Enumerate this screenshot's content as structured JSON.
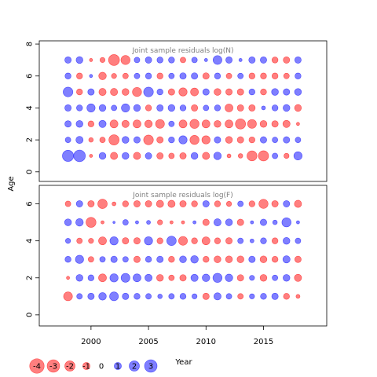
{
  "chart_data": {
    "type": "scatter",
    "style": "bubble",
    "x_years": [
      1998,
      1999,
      2000,
      2001,
      2002,
      2003,
      2004,
      2005,
      2006,
      2007,
      2008,
      2009,
      2010,
      2011,
      2012,
      2013,
      2014,
      2015,
      2016,
      2017,
      2018
    ],
    "xlim": [
      1995.5,
      2020.5
    ],
    "xticks": [
      2000,
      2005,
      2010,
      2015
    ],
    "xlabel": "Year",
    "ylabel": "Age",
    "colors": {
      "positive": "#0000ff",
      "negative": "#ff0000"
    },
    "legend": {
      "position": "bottom-left",
      "entries": [
        {
          "label": "-4",
          "value": -4
        },
        {
          "label": "-3",
          "value": -3
        },
        {
          "label": "-2",
          "value": -2
        },
        {
          "label": "-1",
          "value": -1
        },
        {
          "label": "0",
          "value": 0
        },
        {
          "label": "1",
          "value": 1
        },
        {
          "label": "2",
          "value": 2
        },
        {
          "label": "3",
          "value": 3
        }
      ]
    },
    "panels": [
      {
        "title": "Joint sample residuals log(N)",
        "ylim": [
          -0.6,
          8.2
        ],
        "yticks": [
          0,
          2,
          4,
          6,
          8
        ],
        "ages": [
          1,
          2,
          3,
          4,
          5,
          6,
          7
        ],
        "residuals": [
          [
            2.4,
            2.6,
            -0.2,
            0.9,
            -1.0,
            0.9,
            -1.0,
            0.8,
            -0.8,
            -0.6,
            -0.8,
            0.9,
            -1.0,
            1.1,
            -0.3,
            -0.4,
            -1.9,
            -2.0,
            0.6,
            -0.5,
            1.3
          ],
          [
            0.6,
            1.0,
            -0.4,
            -0.6,
            -2.0,
            0.9,
            0.8,
            -1.8,
            -0.8,
            0.7,
            1.3,
            -1.6,
            -1.3,
            0.8,
            -0.9,
            -0.8,
            -0.7,
            0.8,
            0.6,
            0.8,
            0.6
          ],
          [
            0.8,
            0.9,
            -0.7,
            1.0,
            -1.2,
            -1.0,
            -1.2,
            -1.1,
            -1.5,
            0.6,
            -1.2,
            -1.6,
            -1.2,
            -0.9,
            -1.2,
            -2.0,
            -1.5,
            -0.9,
            -0.8,
            -1.0,
            -0.2
          ],
          [
            0.8,
            0.7,
            1.3,
            0.9,
            0.6,
            1.3,
            0.9,
            -0.7,
            0.8,
            0.9,
            0.7,
            -0.8,
            0.6,
            0.7,
            -1.2,
            -0.8,
            -0.8,
            0.3,
            0.7,
            0.9,
            -0.9
          ],
          [
            1.8,
            -0.7,
            0.8,
            -1.0,
            -1.0,
            -0.9,
            -1.6,
            1.8,
            0.7,
            -0.8,
            -1.3,
            -1.2,
            0.8,
            -0.9,
            -0.8,
            -0.8,
            0.7,
            -0.7,
            0.9,
            0.8,
            0.9
          ],
          [
            0.7,
            -0.7,
            0.2,
            -1.1,
            -0.5,
            -0.6,
            0.6,
            0.7,
            -0.7,
            0.6,
            0.8,
            0.8,
            -0.8,
            0.7,
            -0.6,
            0.6,
            -0.7,
            -0.7,
            -0.7,
            -0.6,
            0.7
          ],
          [
            0.8,
            0.9,
            -0.2,
            -0.5,
            -2.3,
            -1.6,
            0.6,
            0.8,
            0.7,
            0.7,
            -0.6,
            0.6,
            0.2,
            1.5,
            0.8,
            0.2,
            0.8,
            0.8,
            -0.7,
            -0.8,
            0.8
          ]
        ]
      },
      {
        "title": "Joint sample residuals log(F)",
        "ylim": [
          -0.6,
          7.0
        ],
        "yticks": [
          0,
          2,
          4,
          6
        ],
        "ages": [
          1,
          2,
          3,
          4,
          5,
          6
        ],
        "residuals": [
          [
            -1.5,
            0.6,
            0.8,
            1.1,
            1.5,
            0.8,
            0.7,
            0.6,
            0.4,
            0.6,
            0.7,
            0.5,
            -0.8,
            1.0,
            0.6,
            -0.6,
            0.5,
            0.7,
            0.8,
            -0.7,
            -0.3
          ],
          [
            -0.2,
            0.9,
            0.7,
            -1.2,
            1.3,
            1.5,
            1.2,
            1.0,
            -0.9,
            -0.6,
            -0.8,
            1.0,
            1.1,
            1.6,
            1.1,
            -0.8,
            0.5,
            -0.9,
            0.6,
            0.9,
            -1.0
          ],
          [
            0.7,
            1.3,
            -0.6,
            0.6,
            0.8,
            0.6,
            -0.8,
            0.7,
            0.8,
            -0.7,
            0.9,
            1.1,
            -0.7,
            -0.9,
            -0.9,
            -0.9,
            0.8,
            -0.9,
            -0.7,
            1.0,
            -0.8
          ],
          [
            0.5,
            -0.6,
            -0.5,
            -1.2,
            1.3,
            -0.8,
            -0.8,
            1.3,
            -0.7,
            1.7,
            -1.5,
            -0.7,
            -1.2,
            -0.7,
            -0.8,
            0.6,
            0.3,
            0.7,
            -0.7,
            0.9,
            0.6
          ],
          [
            0.9,
            1.1,
            -1.9,
            -0.2,
            0.1,
            0.6,
            0.2,
            0.3,
            -0.5,
            -0.2,
            -0.2,
            0.2,
            -0.8,
            1.0,
            0.9,
            -0.8,
            0.2,
            0.8,
            0.4,
            1.6,
            0.2
          ],
          [
            -0.6,
            0.8,
            -0.8,
            -1.7,
            -0.3,
            -0.7,
            -0.8,
            -0.8,
            -1.0,
            -1.0,
            -0.8,
            -0.7,
            0.8,
            -0.7,
            -0.5,
            0.6,
            -0.7,
            -1.6,
            -0.8,
            0.8,
            -1.0
          ]
        ]
      }
    ]
  }
}
